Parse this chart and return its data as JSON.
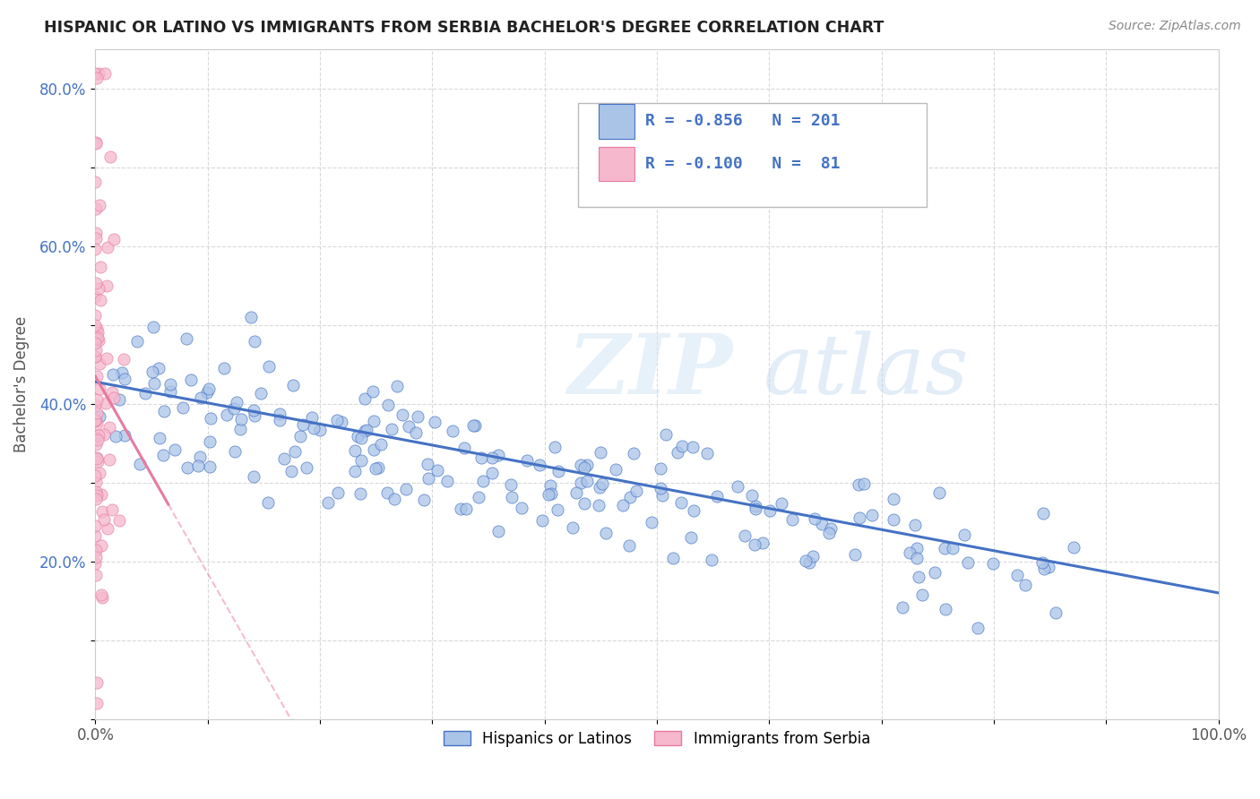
{
  "title": "HISPANIC OR LATINO VS IMMIGRANTS FROM SERBIA BACHELOR'S DEGREE CORRELATION CHART",
  "source": "Source: ZipAtlas.com",
  "ylabel": "Bachelor's Degree",
  "xlim": [
    0,
    1.0
  ],
  "ylim": [
    0,
    0.85
  ],
  "x_ticks": [
    0.0,
    0.1,
    0.2,
    0.3,
    0.4,
    0.5,
    0.6,
    0.7,
    0.8,
    0.9,
    1.0
  ],
  "y_ticks": [
    0.0,
    0.1,
    0.2,
    0.3,
    0.4,
    0.5,
    0.6,
    0.7,
    0.8
  ],
  "x_tick_labels": [
    "0.0%",
    "",
    "",
    "",
    "",
    "",
    "",
    "",
    "",
    "",
    "100.0%"
  ],
  "y_tick_labels": [
    "",
    "",
    "20.0%",
    "",
    "40.0%",
    "",
    "60.0%",
    "",
    "80.0%"
  ],
  "legend_R1": "-0.856",
  "legend_N1": "201",
  "legend_R2": "-0.100",
  "legend_N2": " 81",
  "color_blue_fill": "#aac4e8",
  "color_pink_fill": "#f5b8cc",
  "color_blue_edge": "#4472c4",
  "color_pink_edge": "#e87aa0",
  "color_blue_line": "#4472c4",
  "color_pink_line": "#e87aa0",
  "color_blue_text": "#4472c4",
  "watermark_zip": "ZIP",
  "watermark_atlas": "atlas",
  "n_blue": 201,
  "n_pink": 81
}
